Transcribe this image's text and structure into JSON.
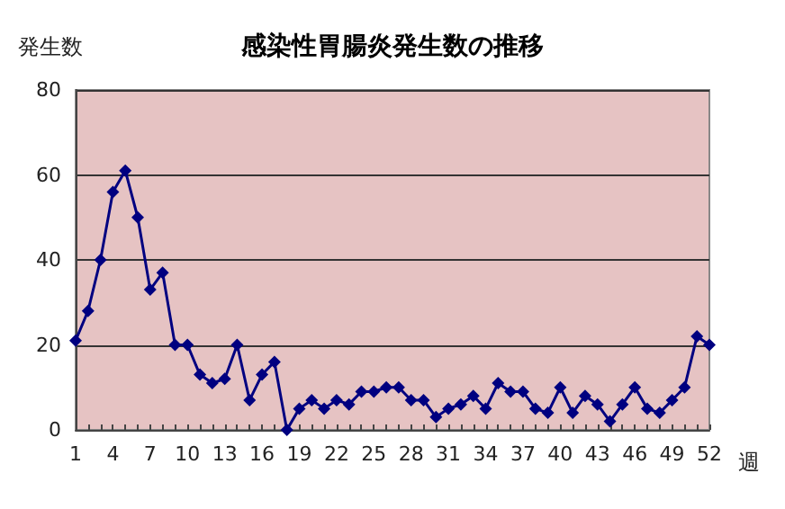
{
  "chart_data": {
    "type": "line",
    "title": "感染性胃腸炎発生数の推移",
    "ylabel": "発生数",
    "xlabel": "週",
    "categories": [
      "1",
      null,
      null,
      "4",
      null,
      null,
      "7",
      null,
      null,
      "10",
      null,
      null,
      "13",
      null,
      null,
      "16",
      null,
      null,
      "19",
      null,
      null,
      "22",
      null,
      null,
      "25",
      null,
      null,
      "28",
      null,
      null,
      "31",
      null,
      null,
      "34",
      null,
      null,
      "37",
      null,
      null,
      "40",
      null,
      null,
      "43",
      null,
      null,
      "46",
      null,
      null,
      "49",
      null,
      null,
      "52"
    ],
    "series": [
      {
        "color": "#000080",
        "values": [
          21,
          28,
          40,
          56,
          61,
          50,
          33,
          37,
          20,
          20,
          13,
          11,
          12,
          20,
          7,
          13,
          16,
          0,
          5,
          7,
          5,
          7,
          6,
          9,
          9,
          10,
          10,
          7,
          7,
          3,
          5,
          6,
          8,
          5,
          11,
          9,
          9,
          5,
          4,
          10,
          4,
          8,
          6,
          2,
          6,
          10,
          5,
          4,
          7,
          10,
          22,
          20
        ]
      }
    ],
    "ylim": [
      0,
      80
    ],
    "yticks": [
      0,
      20,
      40,
      60,
      80
    ],
    "grid": "y",
    "marker": "diamond",
    "line_style": "solid"
  }
}
